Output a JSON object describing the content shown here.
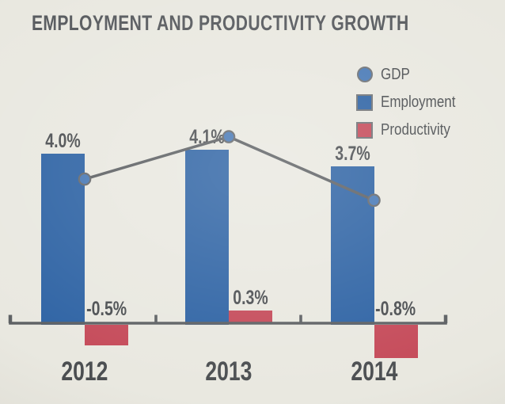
{
  "title": "EMPLOYMENT AND PRODUCTIVITY GROWTH",
  "legend": {
    "items": [
      {
        "label": "GDP",
        "shape": "circle",
        "series": "GDP"
      },
      {
        "label": "Employment",
        "shape": "square",
        "series": "Employment"
      },
      {
        "label": "Productivity",
        "shape": "square",
        "series": "Productivity"
      }
    ]
  },
  "colors": {
    "background": "#e9e8e0",
    "title_text": "#56595d",
    "label_text": "#4b4e51",
    "axis_line": "#5d6063",
    "gdp_line": "#5d6063",
    "employment_bar": "#2e63a4",
    "productivity_bar": "#c54a59",
    "gdp_marker_fill": "#4879b6",
    "gdp_marker_stroke": "#65686c",
    "legend_swatch_border": "#6f7276"
  },
  "chart_data": {
    "type": "bar",
    "title": "EMPLOYMENT AND PRODUCTIVITY GROWTH",
    "categories": [
      "2012",
      "2013",
      "2014"
    ],
    "series": [
      {
        "name": "Employment",
        "type": "bar",
        "values": [
          4.0,
          4.1,
          3.7
        ],
        "value_labels": [
          "4.0%",
          "4.1%",
          "3.7%"
        ]
      },
      {
        "name": "Productivity",
        "type": "bar",
        "values": [
          -0.5,
          0.3,
          -0.8
        ],
        "value_labels": [
          "-0.5%",
          "0.3%",
          "-0.8%"
        ]
      },
      {
        "name": "GDP",
        "type": "line",
        "values": [
          3.4,
          4.4,
          2.9
        ],
        "value_labels": [],
        "note": "GDP values not labeled in chart; estimated from marker positions"
      }
    ],
    "ylim": [
      -1.2,
      4.6
    ],
    "baseline": 0,
    "grid": false,
    "legend_position": "top-right",
    "xlabel": "",
    "ylabel": ""
  }
}
